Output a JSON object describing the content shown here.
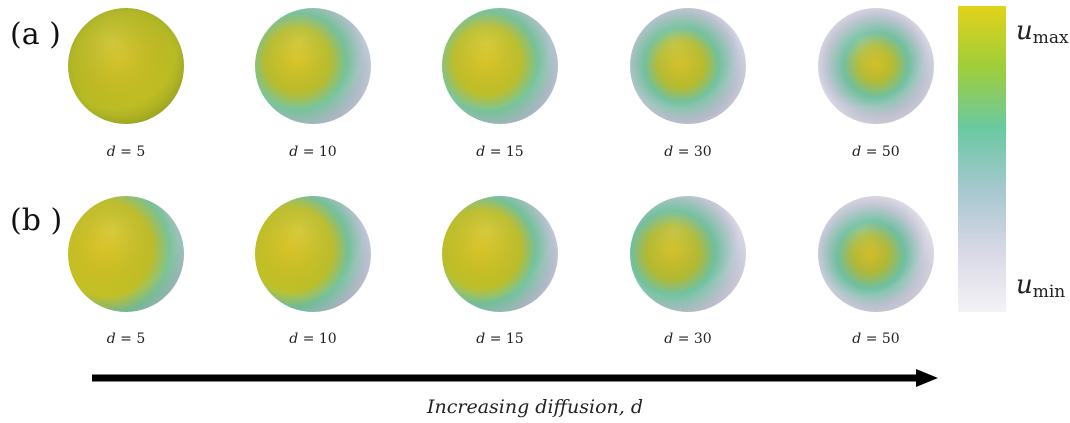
{
  "rows": [
    {
      "label": "(a )",
      "panels": [
        {
          "var": "d",
          "eq": " = ",
          "value": "5"
        },
        {
          "var": "d",
          "eq": " = ",
          "value": "10"
        },
        {
          "var": "d",
          "eq": " = ",
          "value": "15"
        },
        {
          "var": "d",
          "eq": " = ",
          "value": "30"
        },
        {
          "var": "d",
          "eq": " = ",
          "value": "50"
        }
      ]
    },
    {
      "label": "(b )",
      "panels": [
        {
          "var": "d",
          "eq": " = ",
          "value": "5"
        },
        {
          "var": "d",
          "eq": " = ",
          "value": "10"
        },
        {
          "var": "d",
          "eq": " = ",
          "value": "15"
        },
        {
          "var": "d",
          "eq": " = ",
          "value": "30"
        },
        {
          "var": "d",
          "eq": " = ",
          "value": "50"
        }
      ]
    }
  ],
  "colorbar": {
    "max_var": "u",
    "max_sub": "max",
    "min_var": "u",
    "min_sub": "min",
    "colors": [
      "#e3d21a",
      "#9fce3a",
      "#6ac9a2",
      "#a6c7cf",
      "#d8d8e6",
      "#f4f2f6"
    ]
  },
  "axis": {
    "label": "Increasing diffusion, d"
  },
  "sphere_colors": {
    "hot": "#dcc41e",
    "mid": "#a3c23a",
    "teal": "#72c3a6",
    "cool": "#b2bfcf",
    "cold": "#e6e3ee"
  }
}
